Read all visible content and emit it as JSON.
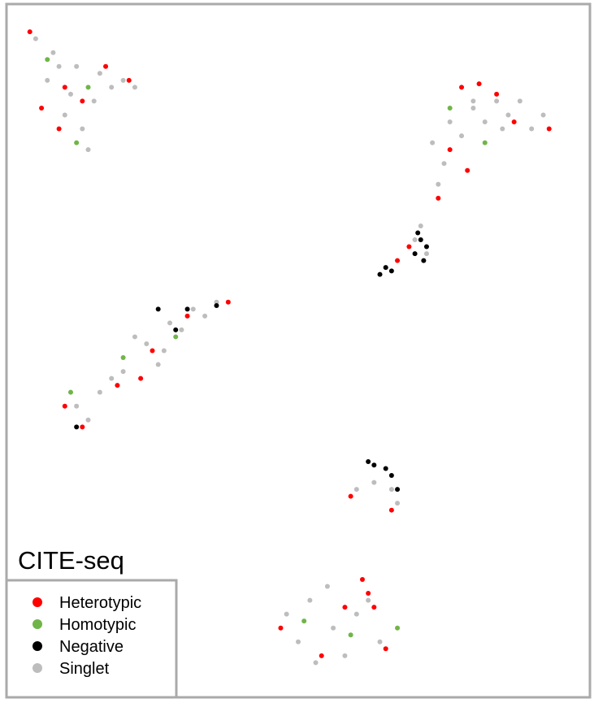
{
  "chart_data": {
    "type": "scatter",
    "title": "CITE-seq",
    "xlim": [
      0,
      100
    ],
    "ylim": [
      0,
      100
    ],
    "legend": "lower left",
    "series": [
      {
        "name": "Heterotypic",
        "color": "#ff0000",
        "x": [
          4,
          6,
          10,
          17,
          21,
          13,
          9,
          78,
          81,
          84,
          93,
          76,
          79,
          87,
          74,
          67,
          69,
          10,
          13,
          19,
          25,
          31,
          38,
          23,
          59,
          66,
          61,
          62,
          63,
          47,
          54,
          58,
          65
        ],
        "values": [
          96,
          85,
          88,
          91,
          89,
          86,
          82,
          88,
          88.5,
          87,
          82,
          79,
          76,
          83,
          72,
          63,
          65,
          42,
          39,
          45,
          50,
          55,
          57,
          46,
          29,
          27,
          17,
          15,
          13,
          10,
          6,
          13,
          7
        ]
      },
      {
        "name": "Homotypic",
        "color": "#70b548",
        "x": [
          7,
          14,
          12,
          76,
          82,
          11,
          20,
          29,
          51,
          59,
          67
        ],
        "values": [
          92,
          88,
          80,
          85,
          80,
          44,
          49,
          52,
          11,
          9,
          10
        ]
      },
      {
        "name": "Negative",
        "color": "#000000",
        "x": [
          64,
          65,
          66,
          70,
          71,
          72,
          70.5,
          71.5,
          62,
          63,
          65,
          66,
          67,
          26,
          31,
          36,
          29,
          12
        ],
        "values": [
          61,
          62,
          61.5,
          64,
          66,
          65,
          67,
          63,
          34,
          33.5,
          33,
          32,
          30,
          56,
          56,
          56.5,
          53,
          39
        ]
      },
      {
        "name": "Singlet",
        "color": "#bdbdbd",
        "x": [
          5,
          8,
          12,
          16,
          20,
          7,
          11,
          15,
          18,
          10,
          13,
          14,
          9,
          22,
          73,
          76,
          80,
          84,
          88,
          92,
          75,
          78,
          82,
          86,
          90,
          74,
          80,
          85,
          70,
          72,
          65,
          71,
          12,
          16,
          20,
          24,
          28,
          32,
          36,
          22,
          26,
          30,
          18,
          14,
          34,
          27,
          60,
          63,
          66,
          67,
          48,
          52,
          56,
          60,
          64,
          50,
          55,
          58,
          62,
          53
        ],
        "values": [
          95,
          93,
          91,
          90,
          89,
          89,
          87,
          86,
          88,
          84,
          82,
          79,
          91,
          88,
          80,
          83,
          85,
          86,
          86,
          84,
          77,
          81,
          83,
          84,
          82,
          74,
          86,
          82,
          66,
          64,
          62,
          68,
          42,
          44,
          47,
          51,
          54,
          56,
          57,
          52,
          48,
          53,
          46,
          40,
          55,
          50,
          30,
          31,
          30,
          28,
          12,
          14,
          10,
          12,
          8,
          8,
          16,
          6,
          14,
          5
        ]
      }
    ]
  }
}
